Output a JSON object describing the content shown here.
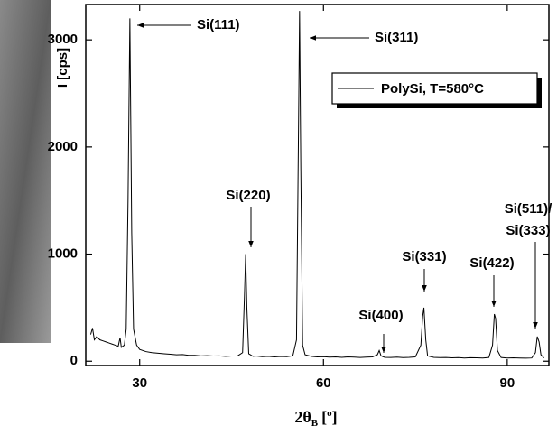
{
  "chart_data": {
    "type": "line",
    "y_label": "I [cps]",
    "x_label": {
      "main": "2θ",
      "sub": "B",
      "open": "[",
      "sup": "o",
      "close": "]"
    },
    "xlim": [
      21.2,
      96.8
    ],
    "xticks": [
      30,
      60,
      90
    ],
    "ylim": [
      -40,
      3330
    ],
    "yticks": [
      0,
      1000,
      2000,
      3000
    ],
    "legend_position": "upper right",
    "annotations": [
      "Si(111)",
      "Si(311)",
      "Si(220)",
      "Si(400)",
      "Si(331)",
      "Si(422)",
      "Si(511)/",
      "Si(333)"
    ],
    "series": [
      {
        "name": "PolySi, T=580°C",
        "color": "#000000",
        "x": [
          22,
          22.3,
          22.6,
          23,
          23.5,
          24,
          24.5,
          25,
          25.5,
          26,
          26.5,
          26.8,
          27,
          27.5,
          27.8,
          28.1,
          28.4,
          28.7,
          29,
          29.5,
          30,
          31,
          32,
          33,
          34,
          35,
          36,
          37,
          38,
          39,
          40,
          41,
          42,
          43,
          44,
          45,
          46,
          46.8,
          47.1,
          47.3,
          47.5,
          47.8,
          48.5,
          49,
          50,
          51,
          52,
          53,
          54,
          55,
          55.6,
          55.9,
          56.1,
          56.3,
          56.6,
          57,
          58,
          59,
          60,
          61,
          62,
          63,
          64,
          65,
          66,
          67,
          68,
          68.8,
          69.1,
          69.4,
          70,
          71,
          72,
          73,
          74,
          75,
          75.9,
          76.2,
          76.4,
          76.7,
          77,
          78,
          79,
          80,
          81,
          82,
          83,
          84,
          85,
          86,
          87,
          87.6,
          87.9,
          88.1,
          88.4,
          89,
          90,
          91,
          92,
          93,
          94,
          94.6,
          94.9,
          95.2,
          95.5,
          96
        ],
        "values": [
          250,
          310,
          200,
          230,
          200,
          190,
          180,
          170,
          160,
          150,
          140,
          220,
          130,
          150,
          300,
          1500,
          3200,
          1200,
          300,
          150,
          110,
          90,
          80,
          75,
          70,
          65,
          60,
          62,
          55,
          55,
          50,
          52,
          48,
          50,
          45,
          48,
          50,
          80,
          600,
          1000,
          500,
          70,
          45,
          48,
          42,
          45,
          40,
          44,
          42,
          50,
          200,
          2000,
          3270,
          1800,
          150,
          60,
          45,
          40,
          42,
          38,
          40,
          36,
          40,
          38,
          35,
          38,
          40,
          60,
          100,
          50,
          36,
          35,
          38,
          34,
          36,
          40,
          150,
          420,
          500,
          200,
          50,
          36,
          34,
          35,
          32,
          34,
          30,
          33,
          32,
          30,
          35,
          150,
          440,
          400,
          100,
          35,
          30,
          32,
          30,
          28,
          30,
          80,
          230,
          180,
          60,
          30
        ]
      }
    ]
  }
}
